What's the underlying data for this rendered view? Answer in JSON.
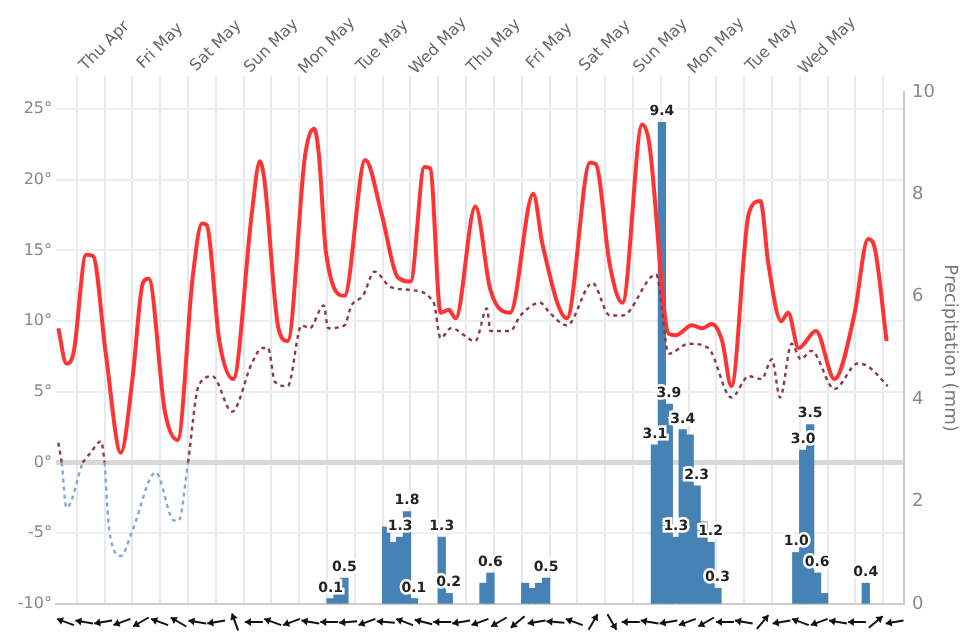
{
  "chart_data": {
    "type": "line",
    "y2label": "Precipitation (mm)",
    "marker": "none",
    "grid": true,
    "legend": false,
    "xlim": [
      "--04-29T03:00",
      "--05-14T09:00"
    ],
    "xticks": [
      {
        "value": "--04-29T12:00",
        "label": null
      },
      {
        "value": "--04-30",
        "label": "Thu Apr"
      },
      {
        "value": "--04-30T12:00",
        "label": null
      },
      {
        "value": "--05-01",
        "label": "Fri May"
      },
      {
        "value": "--05-01T12:00",
        "label": null
      },
      {
        "value": "--05-02",
        "label": "Sat May"
      },
      {
        "value": "--05-02T12:00",
        "label": null
      },
      {
        "value": "--05-03",
        "label": "Sun May"
      },
      {
        "value": "--05-03T12:00",
        "label": null
      },
      {
        "value": "--05-04",
        "label": "Mon May"
      },
      {
        "value": "--05-04T12:00",
        "label": null
      },
      {
        "value": "--05-05",
        "label": "Tue May"
      },
      {
        "value": "--05-05T12:00",
        "label": null
      },
      {
        "value": "--05-06",
        "label": "Wed May"
      },
      {
        "value": "--05-06T12:00",
        "label": null
      },
      {
        "value": "--05-07",
        "label": "Thu May"
      },
      {
        "value": "--05-07T12:00",
        "label": null
      },
      {
        "value": "--05-08",
        "label": "Fri May"
      },
      {
        "value": "--05-08T12:00",
        "label": null
      },
      {
        "value": "--05-09",
        "label": "Sat May"
      },
      {
        "value": "--05-09T12:00",
        "label": null
      },
      {
        "value": "--05-10",
        "label": "Sun May"
      },
      {
        "value": "--05-10T12:00",
        "label": null
      },
      {
        "value": "--05-11",
        "label": "Mon May"
      },
      {
        "value": "--05-11T12:00",
        "label": null
      },
      {
        "value": "--05-12",
        "label": "Tue May"
      },
      {
        "value": "--05-12T12:00",
        "label": null
      },
      {
        "value": "--05-13",
        "label": "Wed May"
      },
      {
        "value": "--05-13T12:00",
        "label": null
      },
      {
        "value": "--05-14",
        "label": null
      }
    ],
    "ylim": [
      -10,
      26.2
    ],
    "yticks": [
      {
        "value": -10,
        "label": "-10°"
      },
      {
        "value": -5,
        "label": "-5°"
      },
      {
        "value": 0,
        "label": "0°"
      },
      {
        "value": 5,
        "label": "5°"
      },
      {
        "value": 10,
        "label": "10°"
      },
      {
        "value": 15,
        "label": "15°"
      },
      {
        "value": 20,
        "label": "20°"
      },
      {
        "value": 25,
        "label": "25°"
      }
    ],
    "y2lim": [
      0,
      10
    ],
    "y2ticks": [
      0,
      2,
      4,
      6,
      8,
      10
    ],
    "series": [
      {
        "type": "bar",
        "axis": "y2",
        "color": "#4682b4",
        "x": [
          "--05-04T01:30",
          "--05-04T04:30",
          "--05-04T07:30",
          "--05-05T01:30",
          "--05-05T04:30",
          "--05-05T07:30",
          "--05-05T10:30",
          "--05-05T13:30",
          "--05-06T01:30",
          "--05-06T04:30",
          "--05-06T19:30",
          "--05-06T22:30",
          "--05-07T13:30",
          "--05-07T16:30",
          "--05-07T19:30",
          "--05-07T22:30",
          "--05-09T21:30",
          "--05-10T00:30",
          "--05-10T03:30",
          "--05-10T06:30",
          "--05-10T09:30",
          "--05-10T12:30",
          "--05-10T15:30",
          "--05-10T18:30",
          "--05-10T21:30",
          "--05-11T00:30",
          "--05-12T10:30",
          "--05-12T13:30",
          "--05-12T16:30",
          "--05-12T19:30",
          "--05-12T22:30",
          "--05-13T16:30"
        ],
        "values": [
          0.1,
          0.2,
          0.5,
          1.5,
          1.2,
          1.3,
          1.8,
          0.1,
          1.3,
          0.2,
          0.4,
          0.6,
          0.4,
          0.3,
          0.4,
          0.5,
          3.1,
          9.4,
          3.9,
          1.3,
          3.4,
          3.3,
          2.3,
          1.6,
          1.2,
          0.3,
          1.0,
          3.0,
          3.5,
          0.6,
          0.2,
          0.4
        ],
        "value_labels": [
          "0.1",
          null,
          "0.5",
          null,
          null,
          "1.3",
          "1.8",
          "0.1",
          "1.3",
          "0.2",
          null,
          "0.6",
          null,
          null,
          null,
          "0.5",
          "3.1",
          "9.4",
          "3.9",
          "1.3",
          "3.4",
          null,
          "2.3",
          null,
          "1.2",
          "0.3",
          "1.0",
          "3.0",
          "3.5",
          "0.6",
          null,
          "0.4"
        ]
      },
      {
        "line_style": "dotted",
        "color": "#8b3a4a",
        "x": [
          "--04-29T04:00",
          "--04-29T05:30",
          "--04-29T06:00",
          "--04-29T14:30",
          "--04-29T17:30",
          "--04-29T22:30",
          "--04-30T00:00",
          "--04-30T01:00",
          "--05-01T12:00",
          "--05-01T16:30",
          "--05-01T22:30",
          "--05-02T07:00",
          "--05-02T15:30",
          "--05-02T20:00",
          "--05-02T22:30",
          "--05-03T01:30",
          "--05-03T07:00",
          "--05-03T13:00",
          "--05-03T16:30",
          "--05-03T22:30",
          "--05-04T00:30",
          "--05-04T07:30",
          "--05-04T10:30",
          "--05-04T15:30",
          "--05-04T20:30",
          "--05-05T03:30",
          "--05-05T12:00",
          "--05-05T22:00",
          "--05-06T01:00",
          "--05-06T05:30",
          "--05-06T16:00",
          "--05-06T21:00",
          "--05-06T22:30",
          "--05-07T07:00",
          "--05-07T11:30",
          "--05-07T20:00",
          "--05-08T00:00",
          "--05-08T07:30",
          "--05-08T18:30",
          "--05-09T02:00",
          "--05-09T07:30",
          "--05-09T22:00",
          "--05-10T03:30",
          "--05-10T12:00",
          "--05-10T20:30",
          "--05-11T06:30",
          "--05-11T14:00",
          "--05-11T19:30",
          "--05-12T00:00",
          "--05-12T03:30",
          "--05-12T08:30",
          "--05-12T12:30",
          "--05-12T17:00",
          "--05-13T03:00",
          "--05-13T13:00",
          "--05-13T17:30",
          "--05-14T02:00"
        ],
        "values": [
          1.4,
          0,
          null,
          0,
          0.6,
          1.5,
          0,
          null,
          0,
          5.4,
          6.1,
          3.6,
          7.0,
          8.1,
          8.1,
          5.7,
          5.4,
          9.7,
          9.5,
          11.1,
          9.5,
          9.7,
          11.1,
          11.8,
          13.5,
          12.4,
          12.2,
          11.3,
          8.8,
          9.5,
          8.6,
          10.9,
          9.3,
          9.3,
          10.4,
          11.3,
          10.6,
          9.7,
          12.7,
          10.4,
          10.4,
          13.3,
          7.7,
          8.4,
          8.1,
          4.6,
          6.1,
          5.9,
          7.3,
          4.6,
          8.4,
          7.3,
          7.9,
          5.2,
          7.0,
          6.8,
          5.4
        ]
      },
      {
        "line_style": "dotted",
        "color": "#7fa7d9",
        "x": [
          "--04-29T05:30",
          "--04-29T07:30",
          "--04-29T14:30",
          "--04-29T15:00",
          "--04-30T00:00",
          "--04-30T02:00",
          "--04-30T07:00",
          "--04-30T12:00",
          "--04-30T22:00",
          "--05-01T06:00",
          "--05-01T08:00",
          "--05-01T12:00"
        ],
        "values": [
          0,
          -3.2,
          0,
          null,
          0,
          -4.8,
          -6.6,
          -4.8,
          -0.7,
          -4.1,
          -4.1,
          0
        ]
      },
      {
        "line_style": "solid",
        "color": "#ff3333",
        "x": [
          "--04-29T04:00",
          "--04-29T07:30",
          "--04-29T10:30",
          "--04-29T16:00",
          "--04-29T19:00",
          "--04-30T00:30",
          "--04-30T07:00",
          "--04-30T12:00",
          "--04-30T16:30",
          "--04-30T19:00",
          "--05-01T02:00",
          "--05-01T07:30",
          "--05-01T14:00",
          "--05-01T18:00",
          "--05-01T20:00",
          "--05-02T01:30",
          "--05-02T07:30",
          "--05-02T15:30",
          "--05-02T19:00",
          "--05-02T21:00",
          "--05-03T03:00",
          "--05-03T07:00",
          "--05-03T14:30",
          "--05-03T18:30",
          "--05-03T20:30",
          "--05-03T23:30",
          "--05-04T07:30",
          "--05-04T16:30",
          "--05-04T23:30",
          "--05-05T06:30",
          "--05-05T12:00",
          "--05-05T18:00",
          "--05-05T20:30",
          "--05-06T01:00",
          "--05-06T04:30",
          "--05-06T07:30",
          "--05-06T16:00",
          "--05-06T22:30",
          "--05-07T07:00",
          "--05-07T17:00",
          "--05-07T21:00",
          "--05-08T07:30",
          "--05-08T17:30",
          "--05-08T20:00",
          "--05-09T02:00",
          "--05-09T07:30",
          "--05-09T16:00",
          "--05-09T19:00",
          "--05-10T03:30",
          "--05-10T06:30",
          "--05-10T13:30",
          "--05-10T18:00",
          "--05-10T22:00",
          "--05-11T02:30",
          "--05-11T06:30",
          "--05-11T14:00",
          "--05-11T19:00",
          "--05-11T22:30",
          "--05-12T04:00",
          "--05-12T07:00",
          "--05-12T11:30",
          "--05-12T19:00",
          "--05-13T03:00",
          "--05-13T11:30",
          "--05-13T17:30",
          "--05-13T20:00",
          "--05-14T01:30"
        ],
        "values": [
          9.5,
          7.0,
          7.7,
          14.7,
          14.6,
          7.7,
          0.7,
          5.9,
          12.7,
          13.0,
          3.6,
          1.6,
          13.1,
          16.9,
          16.8,
          8.6,
          5.9,
          17.6,
          21.3,
          19.9,
          9.5,
          8.6,
          21.7,
          23.6,
          21.7,
          14.9,
          11.8,
          21.4,
          17.6,
          13.1,
          12.8,
          20.9,
          20.8,
          10.6,
          10.8,
          10.2,
          18.1,
          12.2,
          10.6,
          19.0,
          15.4,
          10.2,
          21.2,
          21.1,
          14.0,
          11.3,
          23.9,
          22.6,
          9.1,
          9.0,
          9.7,
          9.5,
          9.8,
          8.6,
          5.4,
          17.6,
          18.5,
          14.0,
          10.0,
          10.6,
          8.1,
          9.3,
          5.9,
          10.4,
          15.8,
          15.4,
          8.6
        ]
      }
    ]
  }
}
